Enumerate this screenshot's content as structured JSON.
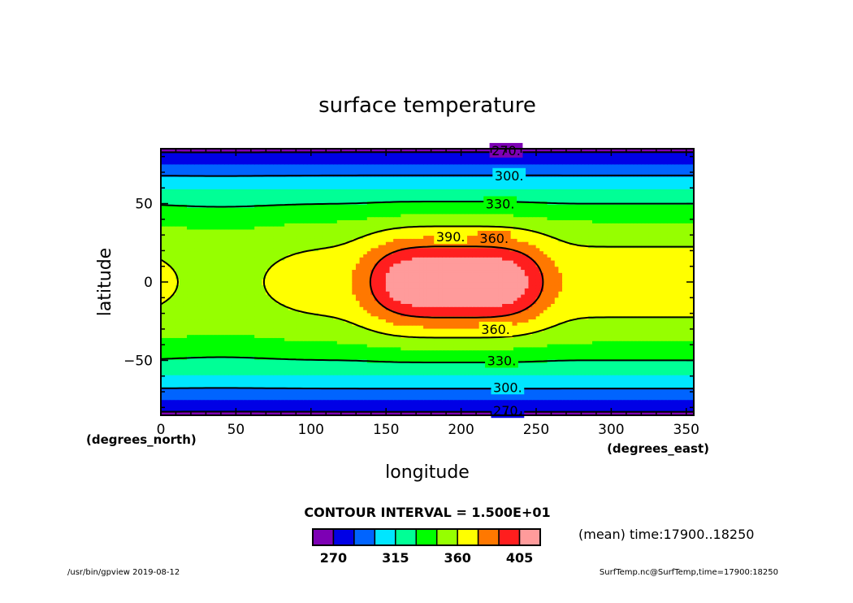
{
  "chart_data": {
    "type": "contour",
    "title": "surface temperature",
    "xlabel": "longitude",
    "ylabel": "latitude",
    "x_units": "(degrees_east)",
    "y_units": "(degrees_north)",
    "xlim": [
      0,
      355
    ],
    "ylim": [
      -85,
      85
    ],
    "x_ticks": [
      0,
      50,
      100,
      150,
      200,
      250,
      300,
      350
    ],
    "y_ticks": [
      -50,
      0,
      50
    ],
    "y_tick_labels": [
      "−50",
      "0",
      "50"
    ],
    "levels": [
      270,
      285,
      300,
      315,
      330,
      345,
      360,
      375,
      390,
      405
    ],
    "fill_colors": [
      "#7d00b4",
      "#0000e6",
      "#0064ff",
      "#00e6ff",
      "#00ff96",
      "#00ff00",
      "#96ff00",
      "#ffff00",
      "#ff7800",
      "#ff1e1e",
      "#ff9b9b"
    ],
    "contour_labels": [
      {
        "text": "270.",
        "x": 230,
        "y": 84
      },
      {
        "text": "300.",
        "x": 232,
        "y": 68
      },
      {
        "text": "330.",
        "x": 226,
        "y": 50
      },
      {
        "text": "360.",
        "x": 222,
        "y": 28
      },
      {
        "text": "390.",
        "x": 193,
        "y": 29
      },
      {
        "text": "360.",
        "x": 223,
        "y": -30
      },
      {
        "text": "330.",
        "x": 227,
        "y": -50
      },
      {
        "text": "300.",
        "x": 231,
        "y": -67
      },
      {
        "text": "270.",
        "x": 231,
        "y": -82
      }
    ],
    "colorbar": {
      "ticks": [
        270,
        315,
        360,
        405
      ]
    }
  },
  "annotations": {
    "contour_interval": "CONTOUR INTERVAL = 1.500E+01",
    "time_info": "(mean) time:17900..18250",
    "footer_left": "/usr/bin/gpview   2019-08-12",
    "footer_right": "SurfTemp.nc@SurfTemp,time=17900:18250"
  }
}
